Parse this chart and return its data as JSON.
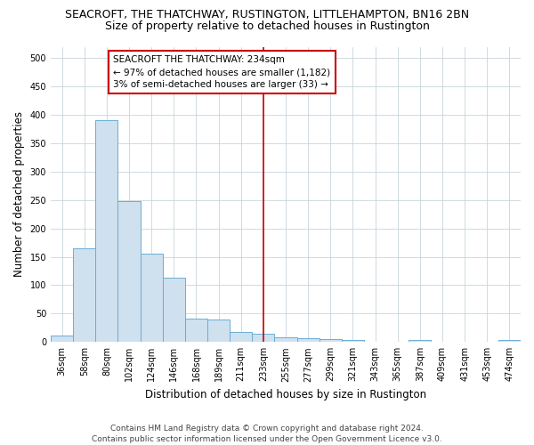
{
  "title": "SEACROFT, THE THATCHWAY, RUSTINGTON, LITTLEHAMPTON, BN16 2BN",
  "subtitle": "Size of property relative to detached houses in Rustington",
  "xlabel": "Distribution of detached houses by size in Rustington",
  "ylabel": "Number of detached properties",
  "categories": [
    "36sqm",
    "58sqm",
    "80sqm",
    "102sqm",
    "124sqm",
    "146sqm",
    "168sqm",
    "189sqm",
    "211sqm",
    "233sqm",
    "255sqm",
    "277sqm",
    "299sqm",
    "321sqm",
    "343sqm",
    "365sqm",
    "387sqm",
    "409sqm",
    "431sqm",
    "453sqm",
    "474sqm"
  ],
  "values": [
    11,
    165,
    390,
    248,
    155,
    113,
    42,
    40,
    17,
    14,
    9,
    7,
    5,
    3,
    0,
    0,
    3,
    0,
    0,
    0,
    4
  ],
  "bar_color": "#cfe0ef",
  "bar_edge_color": "#6aaed6",
  "vline_x_index": 9,
  "vline_color": "#cc0000",
  "annotation_text": "SEACROFT THE THATCHWAY: 234sqm\n← 97% of detached houses are smaller (1,182)\n3% of semi-detached houses are larger (33) →",
  "annotation_box_color": "#ffffff",
  "annotation_box_edge_color": "#cc0000",
  "background_color": "#ffffff",
  "grid_color": "#c8d4dc",
  "footer_text": "Contains HM Land Registry data © Crown copyright and database right 2024.\nContains public sector information licensed under the Open Government Licence v3.0.",
  "ylim": [
    0,
    520
  ],
  "yticks": [
    0,
    50,
    100,
    150,
    200,
    250,
    300,
    350,
    400,
    450,
    500
  ],
  "title_fontsize": 9,
  "subtitle_fontsize": 9,
  "axis_label_fontsize": 8.5,
  "tick_fontsize": 7,
  "annotation_fontsize": 7.5,
  "footer_fontsize": 6.5
}
